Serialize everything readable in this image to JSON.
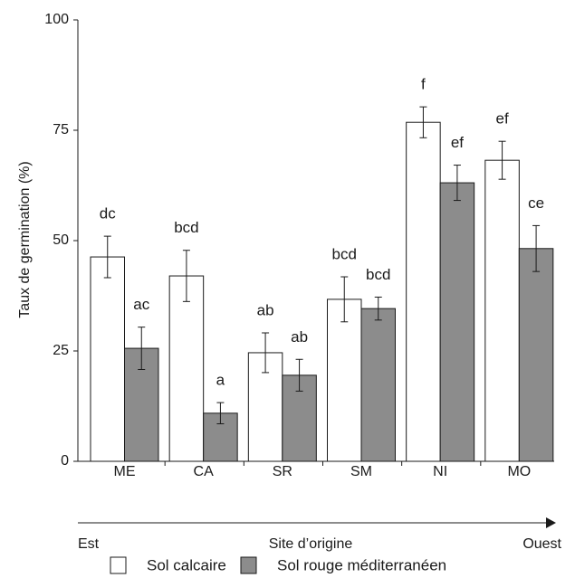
{
  "chart_data": {
    "type": "bar",
    "y_label": "Taux de germination (%)",
    "x_label": "Site d’origine",
    "arrow_start_label": "Est",
    "arrow_end_label": "Ouest",
    "categories": [
      "ME",
      "CA",
      "SR",
      "SM",
      "NI",
      "MO"
    ],
    "series": [
      {
        "name": "Sol calcaire",
        "color": "#ffffff",
        "values": [
          46.3,
          42,
          24.6,
          36.7,
          76.8,
          68.2
        ],
        "errors": [
          4.7,
          5.8,
          4.5,
          5.1,
          3.5,
          4.3
        ],
        "letters": [
          "dc",
          "bcd",
          "ab",
          "bcd",
          "f",
          "ef"
        ]
      },
      {
        "name": "Sol rouge méditerranéen",
        "color": "#8c8c8c",
        "values": [
          25.6,
          10.9,
          19.5,
          34.6,
          63.1,
          48.2
        ],
        "errors": [
          4.8,
          2.4,
          3.6,
          2.6,
          4,
          5.2
        ],
        "letters": [
          "ac",
          "a",
          "ab",
          "bcd",
          "ef",
          "ce"
        ]
      }
    ],
    "ylim": [
      0,
      100
    ],
    "yticks": [
      0,
      25,
      50,
      75,
      100
    ],
    "grid": false
  }
}
